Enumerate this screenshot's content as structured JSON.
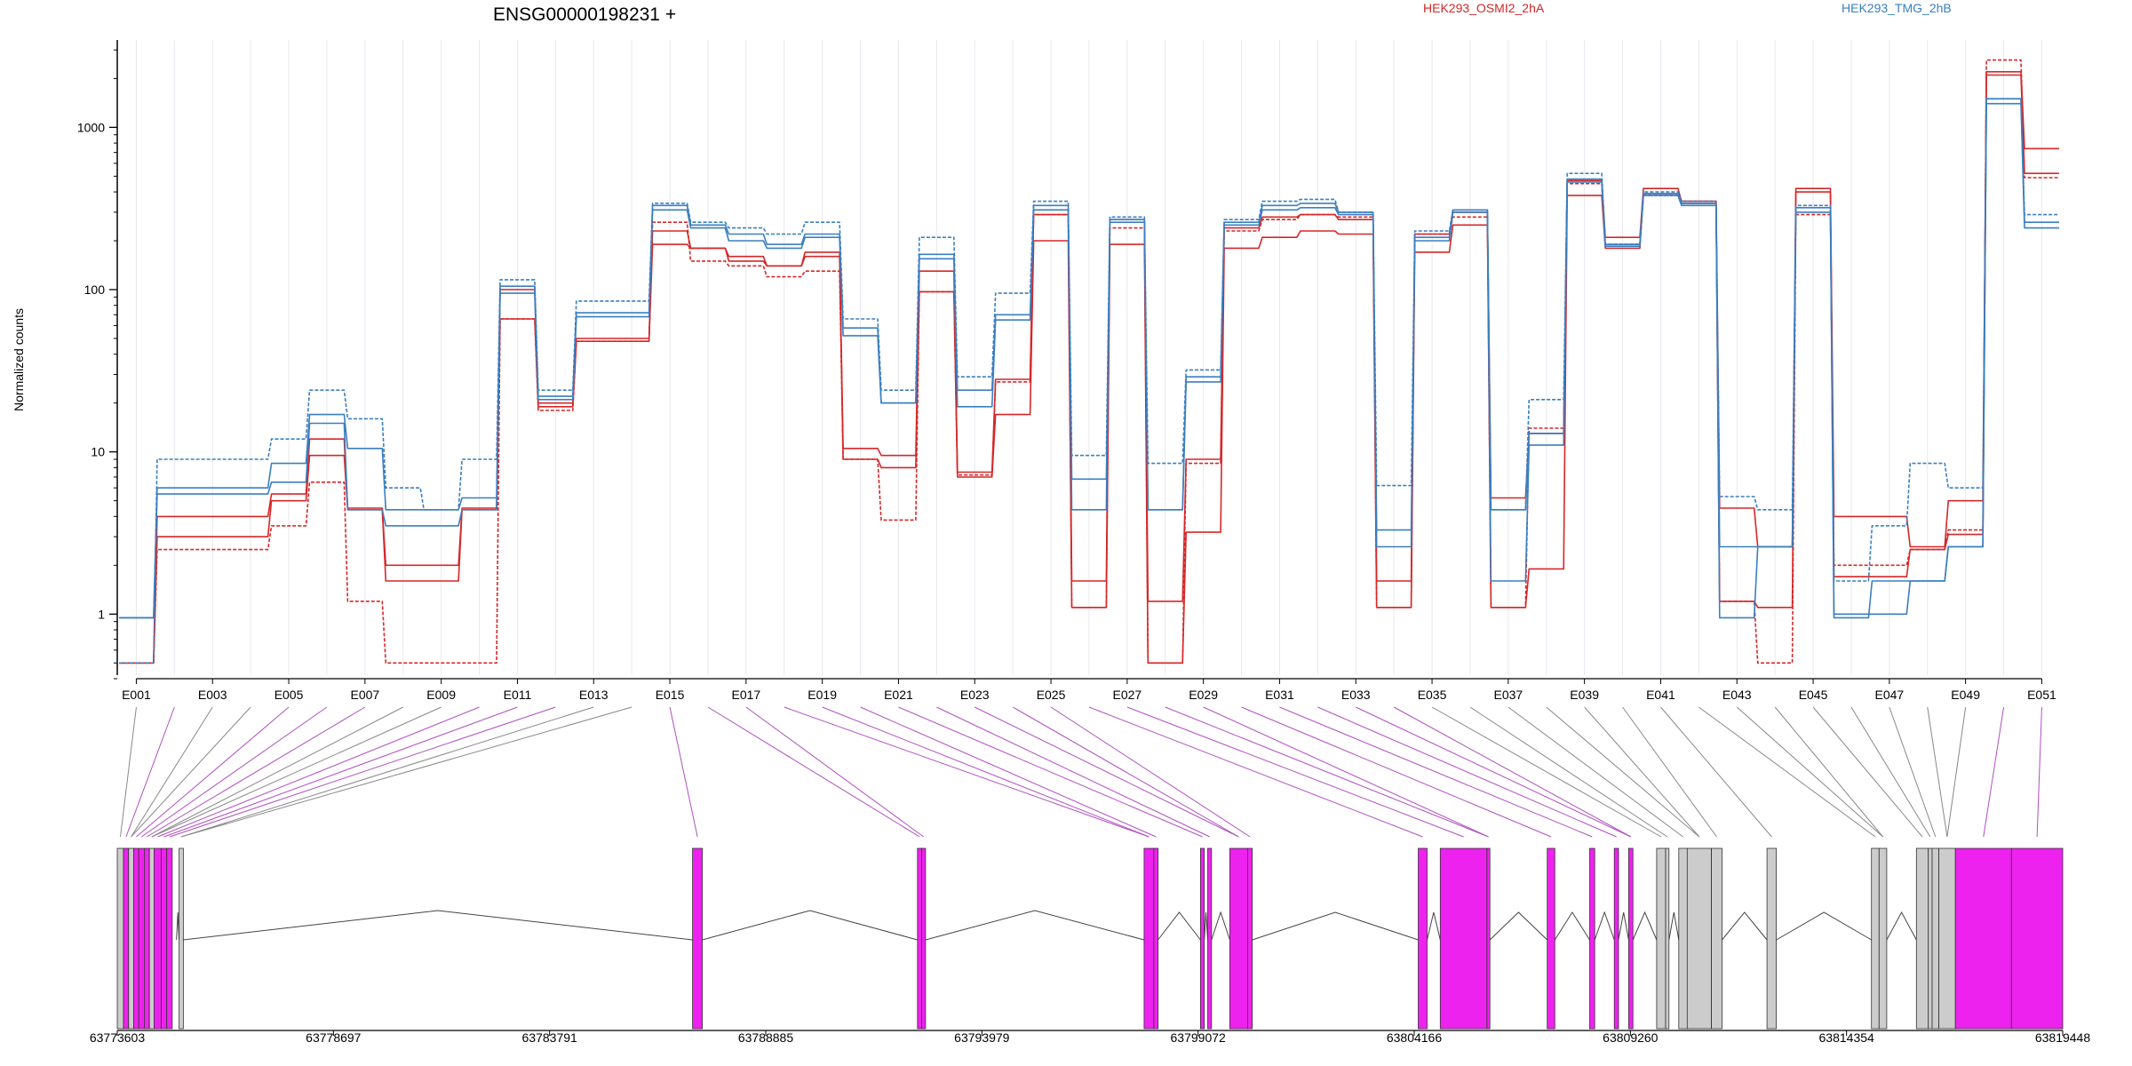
{
  "chart_data": {
    "type": "line",
    "title": "ENSG00000198231 +",
    "ylabel": "Normalized counts",
    "yscale": "log",
    "ylim": [
      0.4,
      3500
    ],
    "yticks": [
      1,
      10,
      100,
      1000
    ],
    "ytick_labels": [
      "1",
      "10",
      "100",
      "1000"
    ],
    "legend": [
      {
        "name": "HEK293_OSMI2_2hA",
        "color": "#d62728"
      },
      {
        "name": "HEK293_TMG_2hB",
        "color": "#3a7fc1"
      }
    ],
    "exon_labels": [
      "E001",
      "E003",
      "E005",
      "E007",
      "E009",
      "E011",
      "E013",
      "E015",
      "E017",
      "E019",
      "E021",
      "E023",
      "E025",
      "E027",
      "E029",
      "E031",
      "E033",
      "E035",
      "E037",
      "E039",
      "E041",
      "E043",
      "E045",
      "E047",
      "E049",
      "E051"
    ],
    "series": [
      {
        "group": "HEK293_OSMI2_2hA",
        "style": "solid",
        "values": [
          0.5,
          4,
          4,
          4,
          5.5,
          12,
          4.5,
          2,
          2,
          4.5,
          100,
          20,
          50,
          50,
          230,
          180,
          160,
          140,
          170,
          10.5,
          9.5,
          130,
          7.5,
          28,
          290,
          1.6,
          270,
          1.2,
          9,
          240,
          280,
          290,
          270,
          1.6,
          220,
          300,
          5.2,
          13,
          470,
          210,
          420,
          350,
          4.5,
          2.6,
          420,
          4,
          4,
          2.6,
          5,
          2200,
          740
        ]
      },
      {
        "group": "HEK293_OSMI2_2hA",
        "style": "solid",
        "values": [
          0.5,
          3,
          3,
          3,
          5,
          9.5,
          4.4,
          1.6,
          1.6,
          4.4,
          66,
          19,
          48,
          48,
          190,
          180,
          150,
          140,
          160,
          9,
          8,
          97,
          7,
          17,
          200,
          1.1,
          190,
          0.5,
          3.2,
          180,
          210,
          230,
          220,
          1.1,
          170,
          250,
          1.1,
          1.9,
          380,
          180,
          390,
          340,
          1.2,
          1.1,
          400,
          1.7,
          1.7,
          2.5,
          3.1,
          2100,
          520
        ]
      },
      {
        "group": "HEK293_OSMI2_2hA",
        "style": "dashed",
        "values": [
          0.5,
          2.5,
          2.5,
          2.5,
          3.5,
          6.5,
          1.2,
          0.5,
          0.5,
          0.5,
          66,
          18,
          48,
          48,
          260,
          150,
          140,
          120,
          130,
          9,
          3.8,
          97,
          7.2,
          27,
          290,
          1.1,
          240,
          0.5,
          8.5,
          230,
          270,
          290,
          280,
          1.1,
          220,
          280,
          1.1,
          14,
          450,
          190,
          380,
          350,
          1.2,
          0.5,
          290,
          2,
          2,
          2.5,
          3.3,
          2600,
          490
        ]
      },
      {
        "group": "HEK293_TMG_2hB",
        "style": "dashed",
        "values": [
          0.5,
          9,
          9,
          9,
          12,
          24,
          16,
          6,
          4.4,
          9,
          115,
          24,
          85,
          85,
          340,
          260,
          240,
          220,
          260,
          66,
          24,
          210,
          29,
          95,
          350,
          9.5,
          280,
          8.5,
          32,
          270,
          350,
          360,
          300,
          6.2,
          230,
          310,
          4.4,
          21,
          520,
          190,
          400,
          350,
          5.3,
          4.4,
          330,
          1.6,
          3.5,
          8.5,
          6,
          1500,
          290
        ]
      },
      {
        "group": "HEK293_TMG_2hB",
        "style": "solid",
        "values": [
          0.95,
          6,
          6,
          6,
          8.5,
          17,
          10.5,
          4.4,
          4.4,
          5.2,
          105,
          22,
          72,
          72,
          330,
          250,
          220,
          190,
          220,
          58,
          20,
          165,
          24,
          70,
          330,
          6.8,
          270,
          4.4,
          29,
          260,
          330,
          340,
          300,
          3.3,
          210,
          310,
          4.4,
          13,
          480,
          190,
          390,
          340,
          2.6,
          2.6,
          320,
          1,
          1,
          1.6,
          2.6,
          1500,
          260
        ]
      },
      {
        "group": "HEK293_TMG_2hB",
        "style": "solid",
        "values": [
          0.95,
          5.5,
          5.5,
          5.5,
          6.5,
          15,
          4.4,
          3.5,
          3.5,
          4.4,
          95,
          21,
          68,
          68,
          310,
          240,
          200,
          180,
          210,
          52,
          20,
          155,
          19,
          65,
          310,
          4.4,
          260,
          4.4,
          27,
          250,
          310,
          320,
          290,
          2.6,
          200,
          300,
          1.6,
          11,
          460,
          185,
          380,
          330,
          0.95,
          2.6,
          300,
          0.95,
          1.6,
          1.6,
          2.6,
          1400,
          240
        ]
      }
    ],
    "gene_model": {
      "coordinates": [
        "63773603",
        "63778697",
        "63783791",
        "63788885",
        "63793979",
        "63799072",
        "63804166",
        "63809260",
        "63814354",
        "63819448"
      ],
      "genomic_range": [
        63773603,
        63819448
      ],
      "exon_fill_colors": {
        "differential": "#ee22ee",
        "other": "#cccccc"
      }
    }
  }
}
